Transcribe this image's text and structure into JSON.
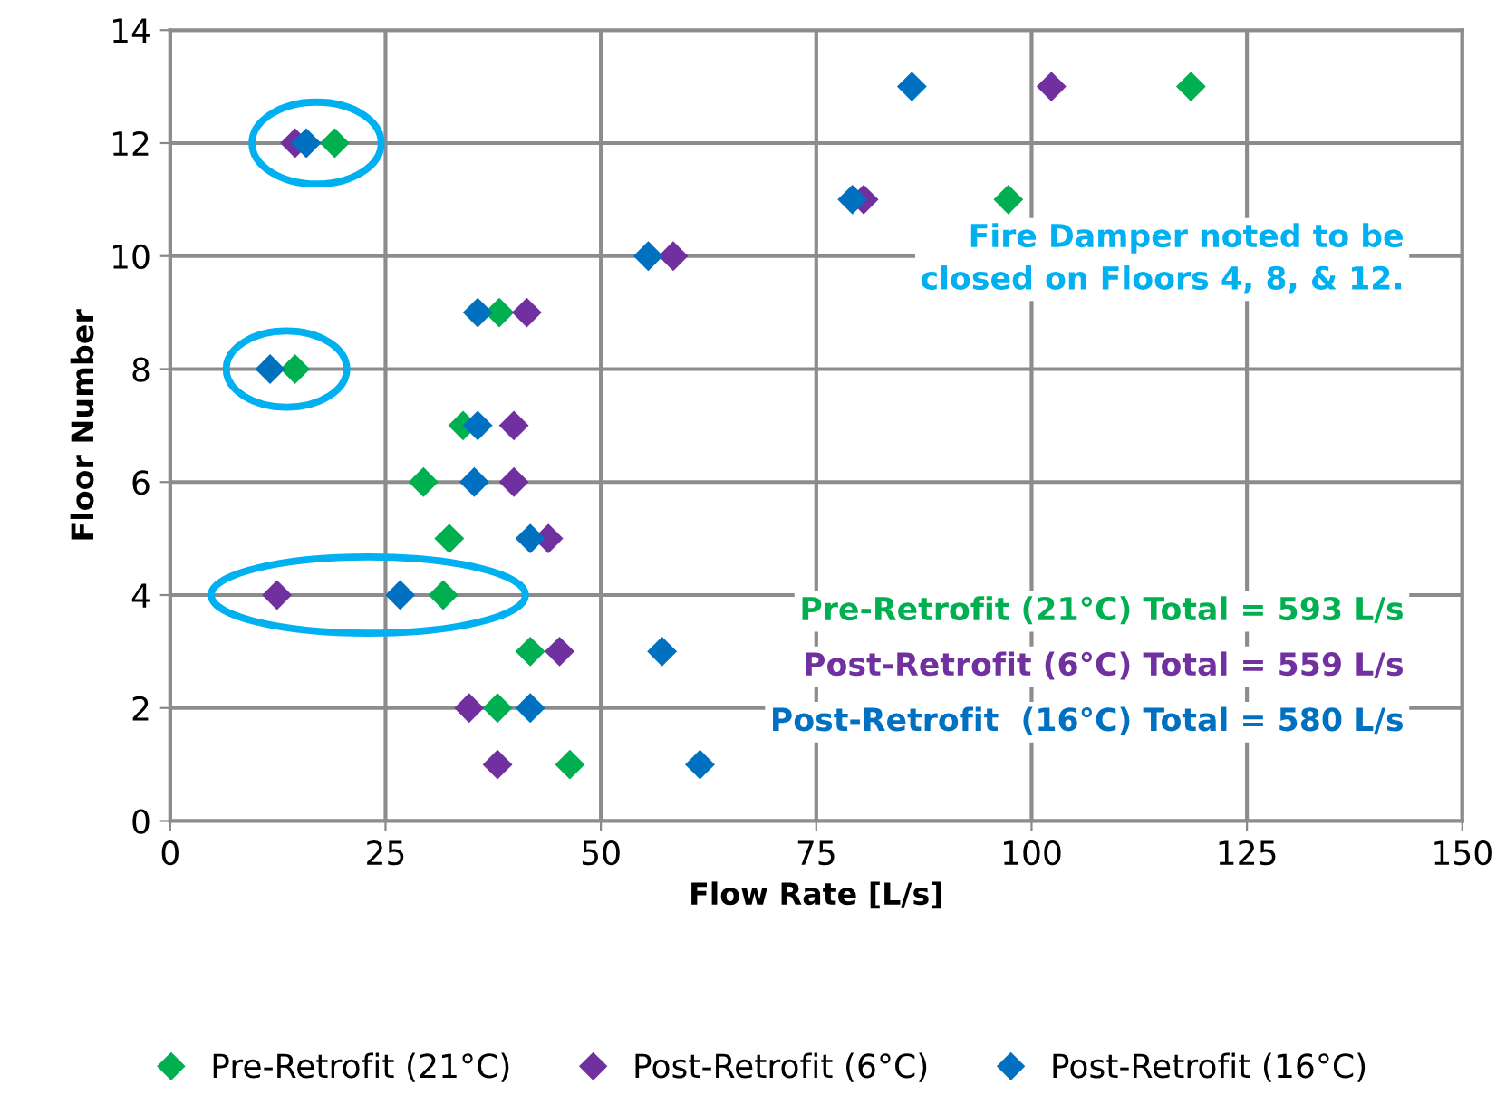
{
  "chart_data": {
    "type": "scatter",
    "xlabel": "Flow Rate [L/s]",
    "ylabel": "Floor Number",
    "xlim": [
      0,
      150
    ],
    "xticks": [
      0,
      25,
      50,
      75,
      100,
      125,
      150
    ],
    "ylim": [
      0,
      14
    ],
    "yticks": [
      0,
      2,
      4,
      6,
      8,
      10,
      12,
      14
    ],
    "grid": true,
    "legend": "bottom",
    "marker": "diamond",
    "series": [
      {
        "name": "Pre-Retrofit (21°C)",
        "color": "#00b050",
        "x": [
          46.4,
          38,
          41.8,
          31.7,
          32.4,
          29.4,
          34,
          14.5,
          38.2,
          null,
          97.3,
          19.1,
          118.5
        ],
        "values": [
          1,
          2,
          3,
          4,
          5,
          6,
          7,
          8,
          9,
          null,
          11,
          12,
          13
        ]
      },
      {
        "name": "Post-Retrofit (6°C)",
        "color": "#7030a0",
        "x": [
          38,
          34.7,
          45.2,
          12.4,
          43.9,
          39.9,
          39.9,
          null,
          41.4,
          58.4,
          80.5,
          14.5,
          102.3
        ],
        "values": [
          1,
          2,
          3,
          4,
          5,
          6,
          7,
          null,
          9,
          10,
          11,
          12,
          13
        ]
      },
      {
        "name": "Post-Retrofit (16°C)",
        "color": "#0070c0",
        "x": [
          61.5,
          41.8,
          57.1,
          26.7,
          41.8,
          35.3,
          35.7,
          11.6,
          35.7,
          55.5,
          79.2,
          15.8,
          86.1
        ],
        "values": [
          1,
          2,
          3,
          4,
          5,
          6,
          7,
          8,
          9,
          10,
          11,
          12,
          13
        ]
      }
    ],
    "annotations": [
      "Fire Damper noted to be\nclosed on Floors 4, 8, & 12.",
      "Pre-Retrofit (21°C) Total = 593 L/s",
      "Post-Retrofit (6°C) Total = 559 L/s",
      "Post-Retrofit  (16°C) Total = 580 L/s"
    ]
  }
}
